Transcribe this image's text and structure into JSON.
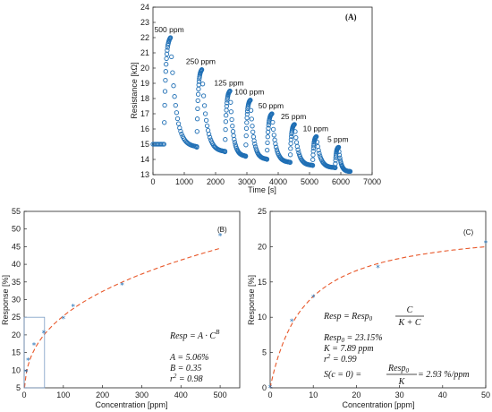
{
  "chart_data": [
    {
      "type": "scatter",
      "panel": "(A)",
      "xlabel": "Time [s]",
      "ylabel": "Resistance [kΩ]",
      "xlim": [
        0,
        7000
      ],
      "ylim": [
        13,
        24
      ],
      "xticks": [
        "0",
        "1000",
        "2000",
        "3000",
        "4000",
        "5000",
        "6000",
        "7000"
      ],
      "yticks": [
        "13",
        "14",
        "15",
        "16",
        "17",
        "18",
        "19",
        "20",
        "21",
        "22",
        "23",
        "24"
      ],
      "marker_color": "#1f6fb5",
      "pulses": [
        {
          "label": "500 ppm",
          "on": 350,
          "off": 560,
          "r0": 15.0,
          "peak": 22.0,
          "end": 15.1
        },
        {
          "label": "250 ppm",
          "on": 1400,
          "off": 1560,
          "r0": 14.8,
          "peak": 19.9,
          "end": 14.5
        },
        {
          "label": "125 ppm",
          "on": 2300,
          "off": 2460,
          "r0": 14.5,
          "peak": 18.5,
          "end": 14.2
        },
        {
          "label": "100 ppm",
          "on": 2960,
          "off": 3110,
          "r0": 14.2,
          "peak": 17.9,
          "end": 14.0
        },
        {
          "label": "50 ppm",
          "on": 3640,
          "off": 3800,
          "r0": 14.0,
          "peak": 17.0,
          "end": 13.8
        },
        {
          "label": "25 ppm",
          "on": 4380,
          "off": 4520,
          "r0": 13.8,
          "peak": 16.3,
          "end": 13.6
        },
        {
          "label": "10 ppm",
          "on": 5100,
          "off": 5220,
          "r0": 13.6,
          "peak": 15.5,
          "end": 13.45
        },
        {
          "label": "5 ppm",
          "on": 5820,
          "off": 5930,
          "r0": 13.45,
          "peak": 14.8,
          "end": 13.3
        }
      ],
      "baseline_start": [
        0,
        15.1
      ],
      "tail_end": [
        6300,
        13.2
      ]
    },
    {
      "type": "scatter",
      "panel": "(B)",
      "xlabel": "Concentration [ppm]",
      "ylabel": "Response [%]",
      "xlim": [
        0,
        550
      ],
      "ylim": [
        5,
        55
      ],
      "xticks": [
        "0",
        "100",
        "200",
        "300",
        "400",
        "500"
      ],
      "yticks": [
        "5",
        "10",
        "15",
        "20",
        "25",
        "30",
        "35",
        "40",
        "45",
        "50",
        "55"
      ],
      "points": [
        [
          5,
          9.4
        ],
        [
          10,
          12.8
        ],
        [
          25,
          17.0
        ],
        [
          50,
          20.5
        ],
        [
          100,
          24.5
        ],
        [
          125,
          28.0
        ],
        [
          250,
          34.0
        ],
        [
          500,
          48.0
        ]
      ],
      "fit": {
        "type": "power",
        "A": 5.06,
        "B": 0.35
      },
      "fit_color": "#e8582a",
      "marker_color": "#1f6fb5",
      "inset_box": {
        "x": [
          0,
          52
        ],
        "y": [
          5,
          25
        ]
      },
      "equation_lines": [
        "Resp = A · C",
        "B",
        "A = 5.06%",
        "B = 0.35",
        "r",
        "2",
        " = 0.98"
      ]
    },
    {
      "type": "scatter",
      "panel": "(C)",
      "xlabel": "Concentration [ppm]",
      "ylabel": "Response [%]",
      "xlim": [
        0,
        50
      ],
      "ylim": [
        0,
        25
      ],
      "xticks": [
        "0",
        "10",
        "20",
        "30",
        "40",
        "50"
      ],
      "yticks": [
        "0",
        "5",
        "10",
        "15",
        "20",
        "25"
      ],
      "points": [
        [
          0,
          0
        ],
        [
          5,
          9.4
        ],
        [
          10,
          12.8
        ],
        [
          25,
          17.0
        ],
        [
          50,
          20.5
        ]
      ],
      "fit": {
        "type": "langmuir",
        "Resp0": 23.15,
        "K": 7.89
      },
      "fit_color": "#e8582a",
      "marker_color": "#1f6fb5",
      "equation_lines": [
        "Resp = Resp",
        "0",
        "C",
        "K + C",
        "Resp",
        "0",
        " = 23.15%",
        "K = 7.89 ppm",
        "r",
        "2",
        " = 0.99",
        "S(c = 0) = ",
        "Resp",
        "0",
        "K",
        " = 2.93 %/ppm"
      ]
    }
  ]
}
